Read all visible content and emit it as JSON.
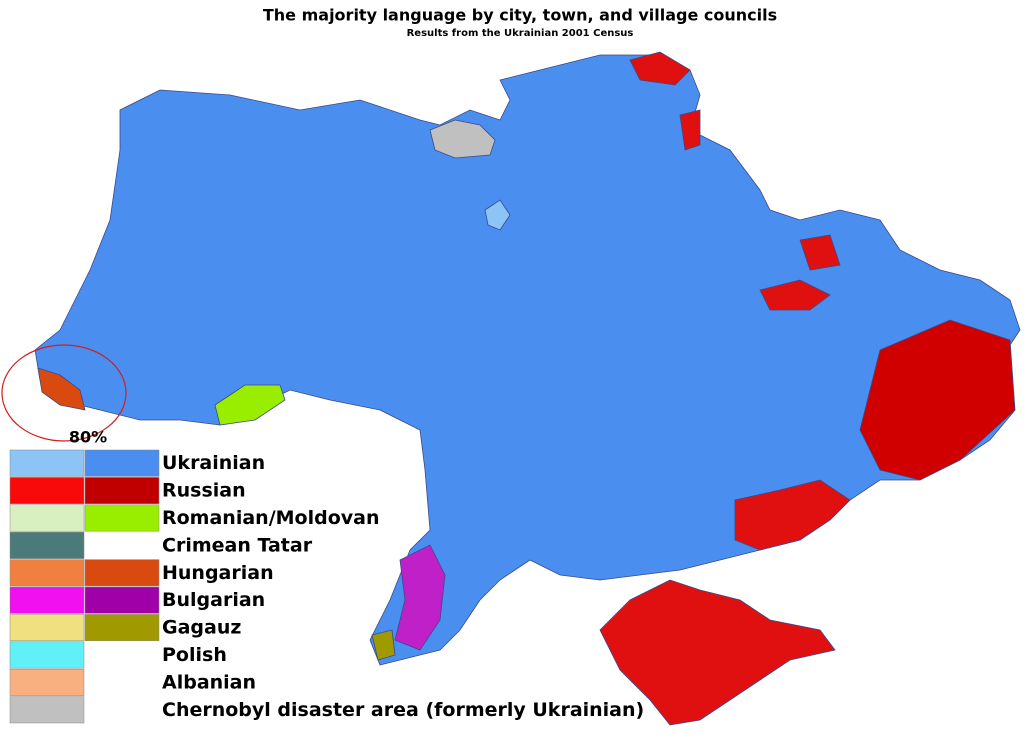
{
  "header": {
    "title": "The majority language by city, town, and village councils",
    "subtitle": "Results from the Ukrainian 2001 Census"
  },
  "annotation": "80%",
  "legend": [
    {
      "label": "Ukrainian",
      "colors": [
        "#8cc4f6",
        "#4a8ef0"
      ]
    },
    {
      "label": "Russian",
      "colors": [
        "#f80a0a",
        "#c00000"
      ]
    },
    {
      "label": "Romanian/Moldovan",
      "colors": [
        "#d8f0c0",
        "#99ee00"
      ]
    },
    {
      "label": "Crimean Tatar",
      "colors": [
        "#4a7a7a"
      ]
    },
    {
      "label": "Hungarian",
      "colors": [
        "#f08040",
        "#d84a10"
      ]
    },
    {
      "label": "Bulgarian",
      "colors": [
        "#f010f0",
        "#a000a8"
      ]
    },
    {
      "label": "Gagauz",
      "colors": [
        "#f0e080",
        "#a09a00"
      ]
    },
    {
      "label": "Polish",
      "colors": [
        "#60f0f8"
      ]
    },
    {
      "label": "Albanian",
      "colors": [
        "#f8b080"
      ]
    },
    {
      "label": "Chernobyl disaster area (formerly Ukrainian)",
      "colors": [
        "#c0c0c0"
      ]
    }
  ]
}
